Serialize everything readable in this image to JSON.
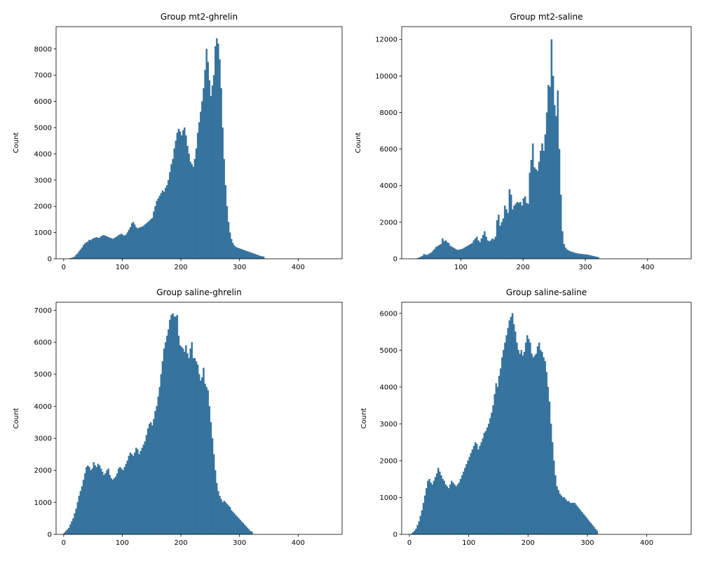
{
  "chart_data": [
    {
      "type": "bar",
      "title": "Group mt2-ghrelin",
      "xlabel": "",
      "ylabel": "Count",
      "xlim": [
        -13,
        475
      ],
      "ylim": [
        0,
        8850
      ],
      "xticks": [
        0,
        100,
        200,
        300,
        400
      ],
      "yticks": [
        0,
        1000,
        2000,
        3000,
        4000,
        5000,
        6000,
        7000,
        8000
      ],
      "bin_start": 0,
      "bin_width": 2.5,
      "values": [
        0,
        0,
        0,
        0,
        20,
        30,
        50,
        80,
        150,
        200,
        280,
        350,
        420,
        520,
        580,
        620,
        650,
        720,
        700,
        750,
        780,
        800,
        820,
        790,
        800,
        850,
        880,
        900,
        870,
        850,
        820,
        800,
        780,
        760,
        780,
        820,
        850,
        900,
        920,
        950,
        900,
        880,
        920,
        1000,
        1100,
        1200,
        1350,
        1400,
        1300,
        1200,
        1150,
        1180,
        1200,
        1220,
        1250,
        1300,
        1350,
        1400,
        1450,
        1500,
        1550,
        1800,
        2000,
        2200,
        2300,
        2400,
        2500,
        2600,
        2550,
        2700,
        2800,
        3000,
        3300,
        3600,
        3800,
        4200,
        4500,
        4800,
        4950,
        4850,
        4700,
        4900,
        5000,
        4700,
        4300,
        4000,
        3700,
        3600,
        3500,
        3800,
        4200,
        4800,
        5200,
        5600,
        6000,
        6500,
        7200,
        8000,
        7500,
        6800,
        6200,
        6600,
        7000,
        8100,
        8400,
        8200,
        7600,
        6500,
        5000,
        3800,
        2800,
        2000,
        1400,
        1000,
        750,
        600,
        500,
        450,
        420,
        400,
        380,
        360,
        340,
        320,
        300,
        280,
        260,
        240,
        220,
        200,
        180,
        160,
        140,
        120,
        100,
        90,
        80
      ]
    },
    {
      "type": "bar",
      "title": "Group mt2-saline",
      "xlabel": "",
      "ylabel": "Count",
      "xlim": [
        5,
        470
      ],
      "ylim": [
        0,
        12700
      ],
      "xticks": [
        100,
        200,
        300,
        400
      ],
      "yticks": [
        0,
        2000,
        4000,
        6000,
        8000,
        10000,
        12000
      ],
      "bin_start": 27,
      "bin_width": 2.5,
      "values": [
        0,
        30,
        60,
        100,
        150,
        250,
        220,
        200,
        250,
        300,
        350,
        450,
        550,
        650,
        700,
        750,
        800,
        1100,
        950,
        1000,
        900,
        850,
        700,
        650,
        600,
        550,
        500,
        480,
        500,
        520,
        550,
        600,
        650,
        700,
        750,
        800,
        850,
        1000,
        1100,
        1200,
        1000,
        900,
        1100,
        1300,
        1500,
        1200,
        1000,
        950,
        1000,
        1100,
        1050,
        1200,
        2100,
        2400,
        1800,
        2000,
        2200,
        2900,
        2700,
        2500,
        3800,
        3500,
        2700,
        2900,
        3000,
        3100,
        3050,
        3100,
        2900,
        3300,
        3400,
        3050,
        3000,
        4700,
        5400,
        6300,
        5000,
        4900,
        4800,
        5300,
        5900,
        6300,
        5900,
        6800,
        8000,
        9500,
        9400,
        12000,
        10000,
        8400,
        7800,
        9200,
        6000,
        3500,
        1500,
        800,
        600,
        500,
        450,
        400,
        380,
        350,
        320,
        300,
        280,
        270,
        260,
        250,
        240,
        230,
        220,
        200,
        180,
        160,
        140,
        120,
        100,
        80
      ]
    },
    {
      "type": "bar",
      "title": "Group saline-ghrelin",
      "xlabel": "",
      "ylabel": "Count",
      "xlim": [
        -13,
        475
      ],
      "ylim": [
        0,
        7250
      ],
      "xticks": [
        0,
        100,
        200,
        300,
        400
      ],
      "yticks": [
        0,
        1000,
        2000,
        3000,
        4000,
        5000,
        6000,
        7000
      ],
      "bin_start": 0,
      "bin_width": 2.5,
      "values": [
        50,
        100,
        150,
        200,
        300,
        400,
        500,
        650,
        800,
        1000,
        1200,
        1350,
        1500,
        1700,
        1900,
        2100,
        2150,
        2100,
        2000,
        2050,
        2250,
        2150,
        2100,
        2200,
        2150,
        2050,
        1950,
        1850,
        1900,
        2000,
        2050,
        1850,
        1750,
        1700,
        1750,
        1800,
        1900,
        2050,
        2100,
        2050,
        2000,
        2100,
        2200,
        2300,
        2450,
        2550,
        2500,
        2450,
        2550,
        2700,
        2650,
        2500,
        2600,
        2700,
        2800,
        2900,
        3100,
        3300,
        3450,
        3500,
        3400,
        3600,
        3850,
        4000,
        4300,
        4600,
        5000,
        5400,
        5800,
        6000,
        6200,
        6400,
        6700,
        6850,
        6900,
        6800,
        6800,
        6850,
        6200,
        5900,
        5850,
        5800,
        5700,
        5900,
        5650,
        5500,
        5800,
        6000,
        5500,
        5500,
        5400,
        5300,
        5000,
        4800,
        4900,
        5200,
        4700,
        4600,
        4500,
        4000,
        3500,
        3000,
        2500,
        2000,
        1600,
        1350,
        1200,
        1100,
        1000,
        1050,
        1000,
        950,
        900,
        850,
        750,
        700,
        650,
        600,
        550,
        500,
        450,
        400,
        350,
        300,
        250,
        200,
        150,
        100,
        80
      ]
    },
    {
      "type": "bar",
      "title": "Group saline-saline",
      "xlabel": "",
      "ylabel": "Count",
      "xlim": [
        -13,
        475
      ],
      "ylim": [
        0,
        6300
      ],
      "xticks": [
        0,
        100,
        200,
        300,
        400
      ],
      "yticks": [
        0,
        1000,
        2000,
        3000,
        4000,
        5000,
        6000
      ],
      "bin_start": 0,
      "bin_width": 2.5,
      "values": [
        0,
        20,
        50,
        100,
        150,
        250,
        350,
        500,
        650,
        850,
        1050,
        1250,
        1450,
        1500,
        1400,
        1350,
        1450,
        1550,
        1650,
        1800,
        1700,
        1600,
        1500,
        1450,
        1350,
        1300,
        1250,
        1350,
        1450,
        1400,
        1350,
        1300,
        1350,
        1400,
        1500,
        1600,
        1700,
        1800,
        1900,
        2000,
        2100,
        2200,
        2300,
        2400,
        2500,
        2450,
        2300,
        2400,
        2500,
        2600,
        2750,
        2800,
        2900,
        3000,
        3150,
        3300,
        3500,
        3800,
        4100,
        4000,
        4300,
        4500,
        4800,
        5000,
        5200,
        5400,
        5600,
        5800,
        5900,
        6000,
        5700,
        5500,
        5200,
        5000,
        4900,
        5000,
        4850,
        4950,
        5200,
        5400,
        5300,
        5200,
        4900,
        4800,
        4850,
        4900,
        5100,
        5200,
        5000,
        4950,
        4800,
        4700,
        4400,
        4000,
        3600,
        3000,
        2500,
        2000,
        1600,
        1300,
        1200,
        1100,
        1050,
        1000,
        1000,
        950,
        900,
        900,
        850,
        850,
        850,
        850,
        800,
        750,
        700,
        650,
        600,
        550,
        500,
        450,
        400,
        350,
        300,
        250,
        200,
        150,
        100
      ]
    }
  ]
}
